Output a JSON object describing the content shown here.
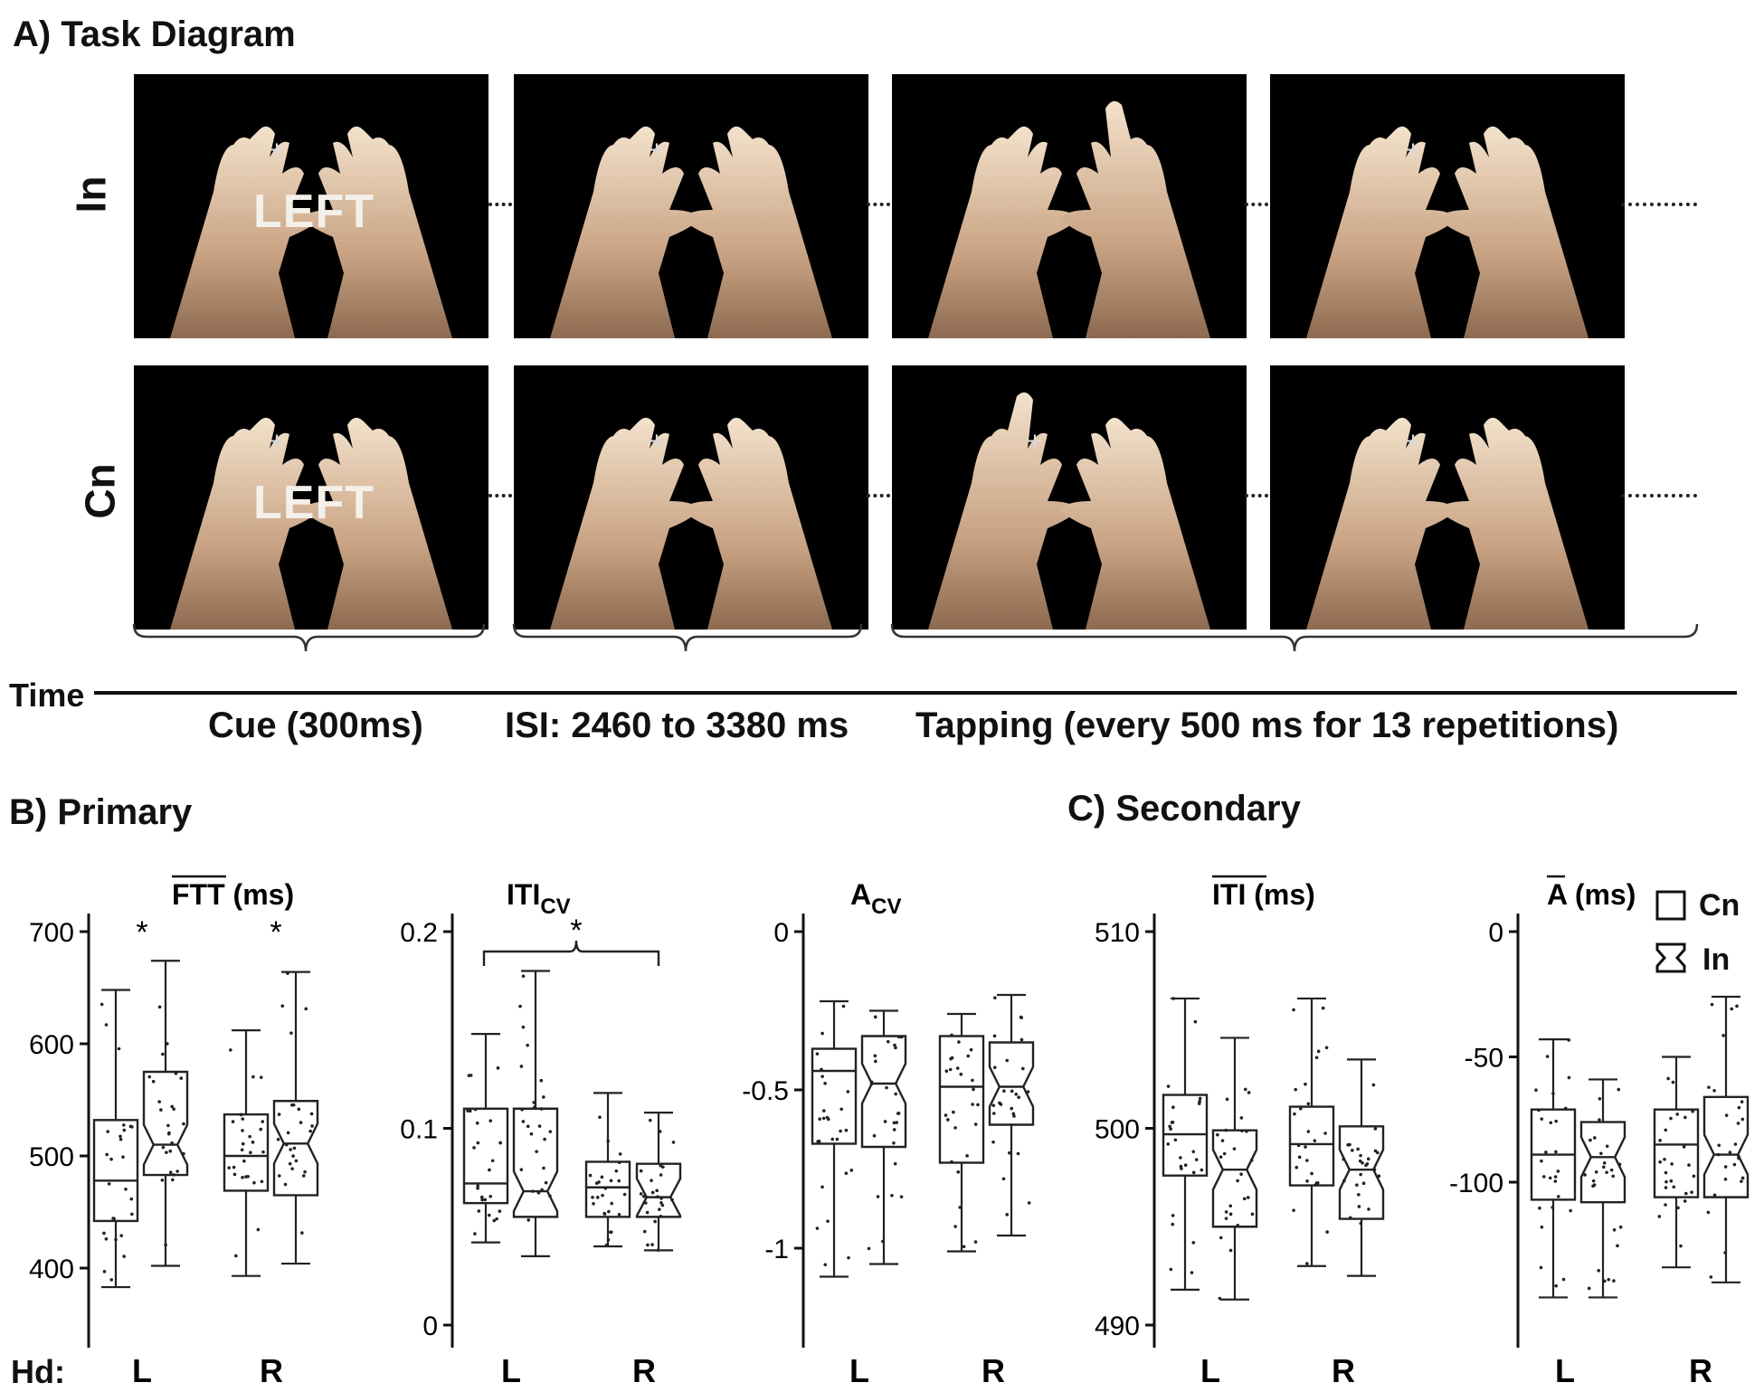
{
  "sections": {
    "task_diagram": "A) Task Diagram",
    "primary": "B) Primary",
    "secondary": "C) Secondary"
  },
  "rows": [
    {
      "label": "In",
      "panels": [
        "cue",
        "rest",
        "tap",
        "rest"
      ]
    },
    {
      "label": "Cn",
      "panels": [
        "cue",
        "rest",
        "tap",
        "rest"
      ]
    }
  ],
  "cue_word": "LEFT",
  "fixation": "+",
  "timeline": {
    "axis_label": "Time",
    "phases": [
      "Cue (300ms)",
      "ISI: 2460 to 3380 ms",
      "Tapping (every 500 ms for 13 repetitions)"
    ]
  },
  "legend": {
    "items": [
      {
        "label": "Cn",
        "shape": "box"
      },
      {
        "label": "In",
        "shape": "notched-box"
      }
    ]
  },
  "x_axis": {
    "row_label": "Hd:",
    "categories": [
      "L",
      "R"
    ]
  },
  "chart_data": [
    {
      "type": "box",
      "title": "FTT (ms)",
      "ylim": [
        380,
        700
      ],
      "yticks": [
        400,
        500,
        600,
        700
      ],
      "categories": [
        "L",
        "R"
      ],
      "series": [
        {
          "name": "Cn",
          "boxes": [
            {
              "min": 383,
              "q1": 442,
              "median": 478,
              "q3": 532,
              "max": 648
            },
            {
              "min": 393,
              "q1": 469,
              "median": 500,
              "q3": 537,
              "max": 612
            }
          ]
        },
        {
          "name": "In",
          "boxes": [
            {
              "min": 402,
              "q1": 483,
              "median": 510,
              "q3": 575,
              "max": 674
            },
            {
              "min": 404,
              "q1": 465,
              "median": 511,
              "q3": 549,
              "max": 664
            }
          ]
        }
      ],
      "annotations": [
        "*",
        "*"
      ]
    },
    {
      "type": "box",
      "title": "ITI_CV",
      "ylim": [
        0,
        0.2
      ],
      "yticks": [
        0,
        0.1,
        0.2
      ],
      "categories": [
        "L",
        "R"
      ],
      "series": [
        {
          "name": "Cn",
          "boxes": [
            {
              "min": 0.042,
              "q1": 0.062,
              "median": 0.072,
              "q3": 0.11,
              "max": 0.148
            },
            {
              "min": 0.04,
              "q1": 0.055,
              "median": 0.07,
              "q3": 0.083,
              "max": 0.118
            }
          ]
        },
        {
          "name": "In",
          "boxes": [
            {
              "min": 0.035,
              "q1": 0.055,
              "median": 0.068,
              "q3": 0.11,
              "max": 0.18
            },
            {
              "min": 0.038,
              "q1": 0.055,
              "median": 0.065,
              "q3": 0.082,
              "max": 0.108
            }
          ]
        }
      ],
      "annotations": [
        "*"
      ]
    },
    {
      "type": "box",
      "title": "A_CV",
      "ylim": [
        -1.25,
        0
      ],
      "yticks": [
        0,
        -0.5,
        -1
      ],
      "categories": [
        "L",
        "R"
      ],
      "series": [
        {
          "name": "Cn",
          "boxes": [
            {
              "min": -1.09,
              "q1": -0.67,
              "median": -0.44,
              "q3": -0.37,
              "max": -0.22
            },
            {
              "min": -1.01,
              "q1": -0.73,
              "median": -0.49,
              "q3": -0.33,
              "max": -0.26
            }
          ]
        },
        {
          "name": "In",
          "boxes": [
            {
              "min": -1.05,
              "q1": -0.68,
              "median": -0.48,
              "q3": -0.33,
              "max": -0.25
            },
            {
              "min": -0.96,
              "q1": -0.61,
              "median": -0.49,
              "q3": -0.35,
              "max": -0.2
            }
          ]
        }
      ]
    },
    {
      "type": "box",
      "title": "ITI (ms)",
      "ylim": [
        490,
        510
      ],
      "yticks": [
        490,
        500,
        510
      ],
      "categories": [
        "L",
        "R"
      ],
      "series": [
        {
          "name": "Cn",
          "boxes": [
            {
              "min": 491.8,
              "q1": 497.6,
              "median": 499.7,
              "q3": 501.7,
              "max": 506.6
            },
            {
              "min": 493.0,
              "q1": 497.1,
              "median": 499.2,
              "q3": 501.1,
              "max": 506.6
            }
          ]
        },
        {
          "name": "In",
          "boxes": [
            {
              "min": 491.3,
              "q1": 495.0,
              "median": 497.9,
              "q3": 499.9,
              "max": 504.6
            },
            {
              "min": 492.5,
              "q1": 495.4,
              "median": 497.9,
              "q3": 500.1,
              "max": 503.5
            }
          ]
        }
      ]
    },
    {
      "type": "box",
      "title": "A (ms)",
      "ylim": [
        -140,
        5
      ],
      "yticks": [
        0,
        -50,
        -100
      ],
      "categories": [
        "L",
        "R"
      ],
      "series": [
        {
          "name": "Cn",
          "boxes": [
            {
              "min": -146,
              "q1": -107,
              "median": -89,
              "q3": -71,
              "max": -43
            },
            {
              "min": -134,
              "q1": -106,
              "median": -85,
              "q3": -71,
              "max": -50
            }
          ]
        },
        {
          "name": "In",
          "boxes": [
            {
              "min": -146,
              "q1": -108,
              "median": -90,
              "q3": -76,
              "max": -59
            },
            {
              "min": -140,
              "q1": -106,
              "median": -89,
              "q3": -66,
              "max": -26
            }
          ]
        }
      ]
    }
  ]
}
